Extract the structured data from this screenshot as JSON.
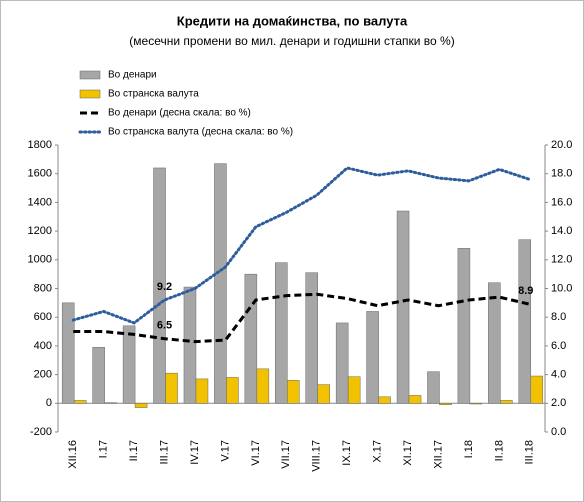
{
  "chart_data": {
    "type": "bar_line",
    "title": "Кредити на домаќинства, по валута",
    "subtitle": "(месечни промени во мил. денари и годишни стапки во %)",
    "categories": [
      "XII.16",
      "I.17",
      "II.17",
      "III.17",
      "IV.17",
      "V.17",
      "VI.17",
      "VII.17",
      "VIII.17",
      "IX.17",
      "X.17",
      "XI.17",
      "XII.17",
      "I.18",
      "II.18",
      "III.18"
    ],
    "series": [
      {
        "name": "Во денари",
        "kind": "bar",
        "color": "#a6a6a6",
        "values": [
          700,
          390,
          540,
          1640,
          810,
          1670,
          900,
          980,
          910,
          560,
          640,
          1340,
          220,
          1080,
          840,
          1140
        ]
      },
      {
        "name": "Во странска валута",
        "kind": "bar",
        "color": "#f2c200",
        "values": [
          20,
          5,
          -30,
          210,
          170,
          180,
          240,
          160,
          130,
          185,
          45,
          55,
          -10,
          -5,
          20,
          190
        ]
      },
      {
        "name": "Во денари  (десна скала: во %)",
        "kind": "line",
        "axis": "y2",
        "dash": "dashed",
        "color": "#000000",
        "values": [
          7.0,
          7.0,
          6.8,
          6.5,
          6.3,
          6.4,
          9.2,
          9.5,
          9.6,
          9.3,
          8.8,
          9.2,
          8.8,
          9.2,
          9.4,
          8.9
        ]
      },
      {
        "name": "Во странска валута  (десна скала: во %)",
        "kind": "line",
        "axis": "y2",
        "dash": "dotted",
        "color": "#2e5d9e",
        "values": [
          7.8,
          8.4,
          7.6,
          9.2,
          10.0,
          11.5,
          14.3,
          15.3,
          16.5,
          18.4,
          17.9,
          18.2,
          17.7,
          17.5,
          18.3,
          17.6
        ]
      }
    ],
    "ylim": [
      -200,
      1800
    ],
    "yticks": [
      -200,
      0,
      200,
      400,
      600,
      800,
      1000,
      1200,
      1400,
      1600,
      1800
    ],
    "y2lim": [
      0,
      20
    ],
    "y2ticks": [
      {
        "value": 0,
        "label": "0.0"
      },
      {
        "value": 2,
        "label": "2.0"
      },
      {
        "value": 4,
        "label": "4.0"
      },
      {
        "value": 6,
        "label": "6.0"
      },
      {
        "value": 8,
        "label": "8.0"
      },
      {
        "value": 10,
        "label": "10.0"
      },
      {
        "value": 12,
        "label": "12.0"
      },
      {
        "value": 14,
        "label": "14.0"
      },
      {
        "value": 16,
        "label": "16.0"
      },
      {
        "value": 18,
        "label": "18.0"
      },
      {
        "value": 20,
        "label": "20.0"
      }
    ],
    "legend": "top-left"
  }
}
